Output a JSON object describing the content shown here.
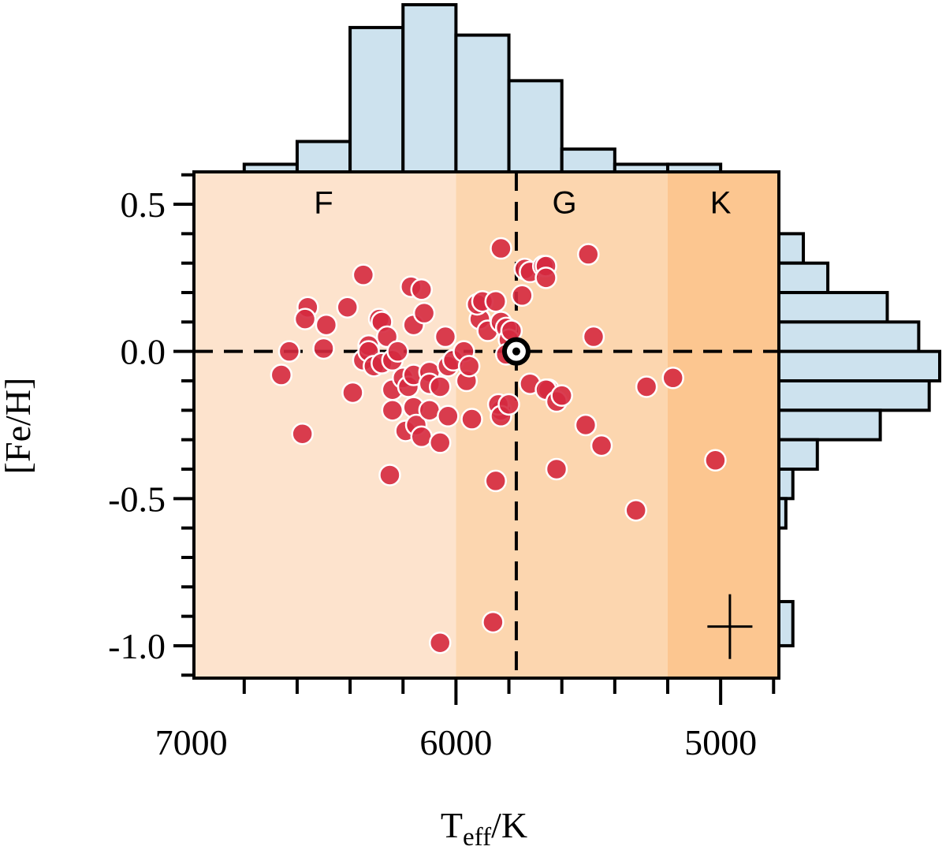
{
  "chart_data": {
    "type": "scatter",
    "xlabel": {
      "main": "T",
      "sub": "eff",
      "suffix": "/K"
    },
    "ylabel": "[Fe/H]",
    "xlim": [
      6990,
      4780
    ],
    "ylim": [
      -1.11,
      0.61
    ],
    "x_ticks": [
      {
        "value": 7000,
        "label": "7000"
      },
      {
        "value": 6000,
        "label": "6000"
      },
      {
        "value": 5000,
        "label": "5000"
      }
    ],
    "x_minor_step": 200,
    "y_ticks": [
      {
        "value": 0.5,
        "label": "0.5"
      },
      {
        "value": 0.0,
        "label": "0.0"
      },
      {
        "value": -0.5,
        "label": "-0.5"
      },
      {
        "value": -1.0,
        "label": "-1.0"
      }
    ],
    "y_minor_step": 0.1,
    "regions": [
      {
        "label": "F",
        "from": 6990,
        "to": 6000,
        "color": "#fde3cd"
      },
      {
        "label": "G",
        "from": 6000,
        "to": 5200,
        "color": "#fcd6af"
      },
      {
        "label": "K",
        "from": 5200,
        "to": 4780,
        "color": "#fcc690"
      }
    ],
    "reference": {
      "name": "Sun",
      "teff": 5772,
      "feh": 0.0
    },
    "error_bar": {
      "teff": 4965,
      "feh": -0.935,
      "teff_err": 85,
      "feh_err": 0.11
    },
    "series": [
      {
        "name": "Stars",
        "color": "#d5293f",
        "points": [
          [
            6630,
            0.0
          ],
          [
            6660,
            -0.08
          ],
          [
            6580,
            -0.28
          ],
          [
            6560,
            0.15
          ],
          [
            6570,
            0.11
          ],
          [
            6490,
            0.09
          ],
          [
            6500,
            0.01
          ],
          [
            6410,
            0.15
          ],
          [
            6350,
            0.26
          ],
          [
            6350,
            -0.03
          ],
          [
            6330,
            0.02
          ],
          [
            6330,
            0.0
          ],
          [
            6310,
            -0.05
          ],
          [
            6280,
            -0.04
          ],
          [
            6290,
            0.11
          ],
          [
            6280,
            0.1
          ],
          [
            6260,
            0.05
          ],
          [
            6240,
            -0.03
          ],
          [
            6220,
            0.0
          ],
          [
            6390,
            -0.14
          ],
          [
            6240,
            -0.13
          ],
          [
            6200,
            -0.09
          ],
          [
            6180,
            -0.12
          ],
          [
            6160,
            -0.08
          ],
          [
            6240,
            -0.2
          ],
          [
            6190,
            -0.27
          ],
          [
            6160,
            -0.19
          ],
          [
            6150,
            -0.25
          ],
          [
            6100,
            -0.2
          ],
          [
            6130,
            -0.29
          ],
          [
            6170,
            0.22
          ],
          [
            6130,
            0.21
          ],
          [
            6160,
            0.09
          ],
          [
            6120,
            0.13
          ],
          [
            6100,
            -0.07
          ],
          [
            6100,
            -0.11
          ],
          [
            6060,
            -0.12
          ],
          [
            6040,
            0.05
          ],
          [
            6030,
            -0.05
          ],
          [
            6010,
            -0.03
          ],
          [
            6030,
            -0.22
          ],
          [
            6060,
            -0.31
          ],
          [
            5970,
            0.0
          ],
          [
            5960,
            -0.1
          ],
          [
            5950,
            -0.05
          ],
          [
            5940,
            -0.23
          ],
          [
            5910,
            0.11
          ],
          [
            5920,
            0.16
          ],
          [
            5900,
            0.17
          ],
          [
            5880,
            0.07
          ],
          [
            5850,
            0.17
          ],
          [
            5830,
            0.35
          ],
          [
            5830,
            0.1
          ],
          [
            5810,
            0.08
          ],
          [
            5800,
            0.04
          ],
          [
            5790,
            0.07
          ],
          [
            5830,
            -0.2
          ],
          [
            5840,
            -0.18
          ],
          [
            5830,
            -0.22
          ],
          [
            5800,
            -0.18
          ],
          [
            5810,
            -0.01
          ],
          [
            5750,
            0.19
          ],
          [
            5740,
            0.28
          ],
          [
            5720,
            0.27
          ],
          [
            5720,
            -0.11
          ],
          [
            5670,
            0.29
          ],
          [
            5660,
            0.29
          ],
          [
            5660,
            0.25
          ],
          [
            5650,
            -0.13
          ],
          [
            5660,
            -0.13
          ],
          [
            5620,
            -0.17
          ],
          [
            5600,
            -0.15
          ],
          [
            5620,
            -0.4
          ],
          [
            5500,
            0.33
          ],
          [
            5480,
            0.05
          ],
          [
            5510,
            -0.25
          ],
          [
            5450,
            -0.32
          ],
          [
            5320,
            -0.54
          ],
          [
            5280,
            -0.12
          ],
          [
            5180,
            -0.09
          ],
          [
            5020,
            -0.37
          ],
          [
            6250,
            -0.42
          ],
          [
            5850,
            -0.44
          ],
          [
            5860,
            -0.92
          ],
          [
            6060,
            -0.99
          ]
        ]
      }
    ],
    "top_histogram": {
      "bin_edges": [
        6800,
        6600,
        6400,
        6200,
        6000,
        5800,
        5600,
        5400,
        5200,
        5000
      ],
      "counts": [
        2,
        8,
        38,
        44,
        36,
        24,
        6,
        2,
        2
      ]
    },
    "right_histogram": {
      "bin_edges": [
        0.4,
        0.3,
        0.2,
        0.1,
        0.0,
        -0.1,
        -0.2,
        -0.3,
        -0.4,
        -0.5,
        -0.6
      ],
      "counts": [
        7,
        14,
        31,
        40,
        46,
        43,
        29,
        11,
        4,
        2
      ],
      "extra_bins": [
        {
          "from": -0.85,
          "to": -1.0,
          "count": 4
        }
      ]
    }
  }
}
